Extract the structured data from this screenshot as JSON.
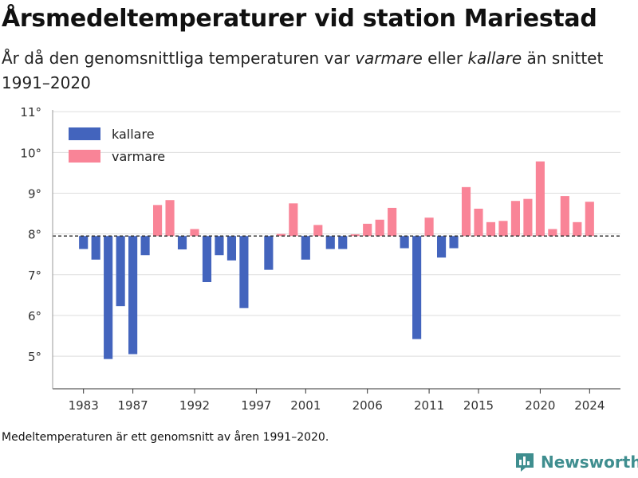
{
  "header": {
    "title": "Årsmedeltemperaturer vid station Mariestad",
    "subtitle_pre": "År då den genomsnittliga temperaturen var ",
    "subtitle_warm": "varmare",
    "subtitle_mid": " eller ",
    "subtitle_cold": "kallare",
    "subtitle_post": " än snittet 1991–2020"
  },
  "footer": {
    "note": "Medeltemperaturen är ett genomsnitt av åren 1991–2020.",
    "brand": "Newsworthy"
  },
  "colors": {
    "cold": "#4364bd",
    "warm": "#f98497",
    "reference_line": "#333333",
    "grid": "#dddddd",
    "brand": "#3f8e8f"
  },
  "icons": {
    "brand_logo": "bar-chart-logo-icon"
  },
  "chart_data": {
    "type": "bar",
    "baseline": 7.95,
    "ylim": [
      4.2,
      11.2
    ],
    "y_ticks": [
      5,
      6,
      7,
      8,
      9,
      10,
      11
    ],
    "y_tick_labels": [
      "5°",
      "6°",
      "7°",
      "8°",
      "9°",
      "10°",
      "11°"
    ],
    "x_ticks": [
      1983,
      1987,
      1992,
      1997,
      2001,
      2006,
      2011,
      2015,
      2020,
      2024
    ],
    "xlim": [
      1980.5,
      2026.5
    ],
    "legend": {
      "position": "top-left",
      "items": [
        {
          "key": "cold",
          "label": "kallare"
        },
        {
          "key": "warm",
          "label": "varmare"
        }
      ]
    },
    "series": [
      {
        "name": "kallare",
        "color_key": "cold",
        "points": [
          [
            1983,
            7.63
          ],
          [
            1984,
            7.37
          ],
          [
            1985,
            4.93
          ],
          [
            1986,
            6.23
          ],
          [
            1987,
            5.05
          ],
          [
            1988,
            7.48
          ],
          [
            1991,
            7.62
          ],
          [
            1993,
            6.82
          ],
          [
            1994,
            7.48
          ],
          [
            1995,
            7.35
          ],
          [
            1996,
            6.18
          ],
          [
            1998,
            7.12
          ],
          [
            2001,
            7.37
          ],
          [
            2003,
            7.63
          ],
          [
            2004,
            7.63
          ],
          [
            2009,
            7.65
          ],
          [
            2010,
            5.42
          ],
          [
            2012,
            7.42
          ],
          [
            2013,
            7.65
          ]
        ]
      },
      {
        "name": "varmare",
        "color_key": "warm",
        "points": [
          [
            1989,
            8.71
          ],
          [
            1990,
            8.83
          ],
          [
            1992,
            8.12
          ],
          [
            1999,
            8.0
          ],
          [
            2000,
            8.75
          ],
          [
            2002,
            8.22
          ],
          [
            2005,
            7.99
          ],
          [
            2006,
            8.25
          ],
          [
            2007,
            8.35
          ],
          [
            2008,
            8.64
          ],
          [
            2011,
            8.4
          ],
          [
            2014,
            9.15
          ],
          [
            2015,
            8.62
          ],
          [
            2016,
            8.29
          ],
          [
            2017,
            8.32
          ],
          [
            2018,
            8.81
          ],
          [
            2019,
            8.86
          ],
          [
            2020,
            9.78
          ],
          [
            2021,
            8.12
          ],
          [
            2022,
            8.93
          ],
          [
            2023,
            8.29
          ],
          [
            2024,
            8.79
          ]
        ]
      }
    ]
  }
}
